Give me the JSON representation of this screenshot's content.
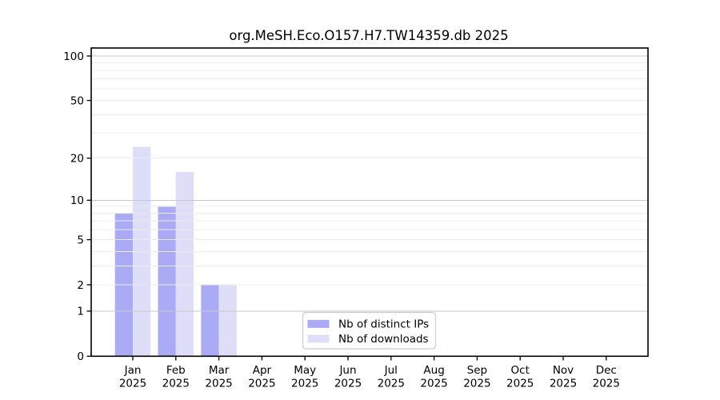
{
  "chart_data": {
    "type": "bar",
    "title": "org.MeSH.Eco.O157.H7.TW14359.db 2025",
    "categories": [
      "Jan",
      "Feb",
      "Mar",
      "Apr",
      "May",
      "Jun",
      "Jul",
      "Aug",
      "Sep",
      "Oct",
      "Nov",
      "Dec"
    ],
    "year_label": "2025",
    "series": [
      {
        "name": "Nb of distinct IPs",
        "color": "#aaaaf5",
        "values": [
          8,
          9,
          2,
          0,
          0,
          0,
          0,
          0,
          0,
          0,
          0,
          0
        ]
      },
      {
        "name": "Nb of downloads",
        "color": "#dedef8",
        "values": [
          24,
          16,
          2,
          0,
          0,
          0,
          0,
          0,
          0,
          0,
          0,
          0
        ]
      }
    ],
    "ylabel": "",
    "xlabel": "",
    "yticks": [
      0,
      1,
      2,
      5,
      10,
      20,
      50,
      100
    ],
    "y_scale": "log10(1+v)",
    "ylim": [
      0,
      113
    ],
    "grid": true,
    "legend_position": "bottom-center-inside"
  },
  "colors": {
    "bar_distinct_ips": "#aaaaf5",
    "bar_downloads": "#dedef8",
    "grid_decade": "#c8c8c8",
    "grid_minor": "#ececec",
    "axis": "#000000",
    "legend_border": "#cccccc",
    "background": "#ffffff"
  }
}
